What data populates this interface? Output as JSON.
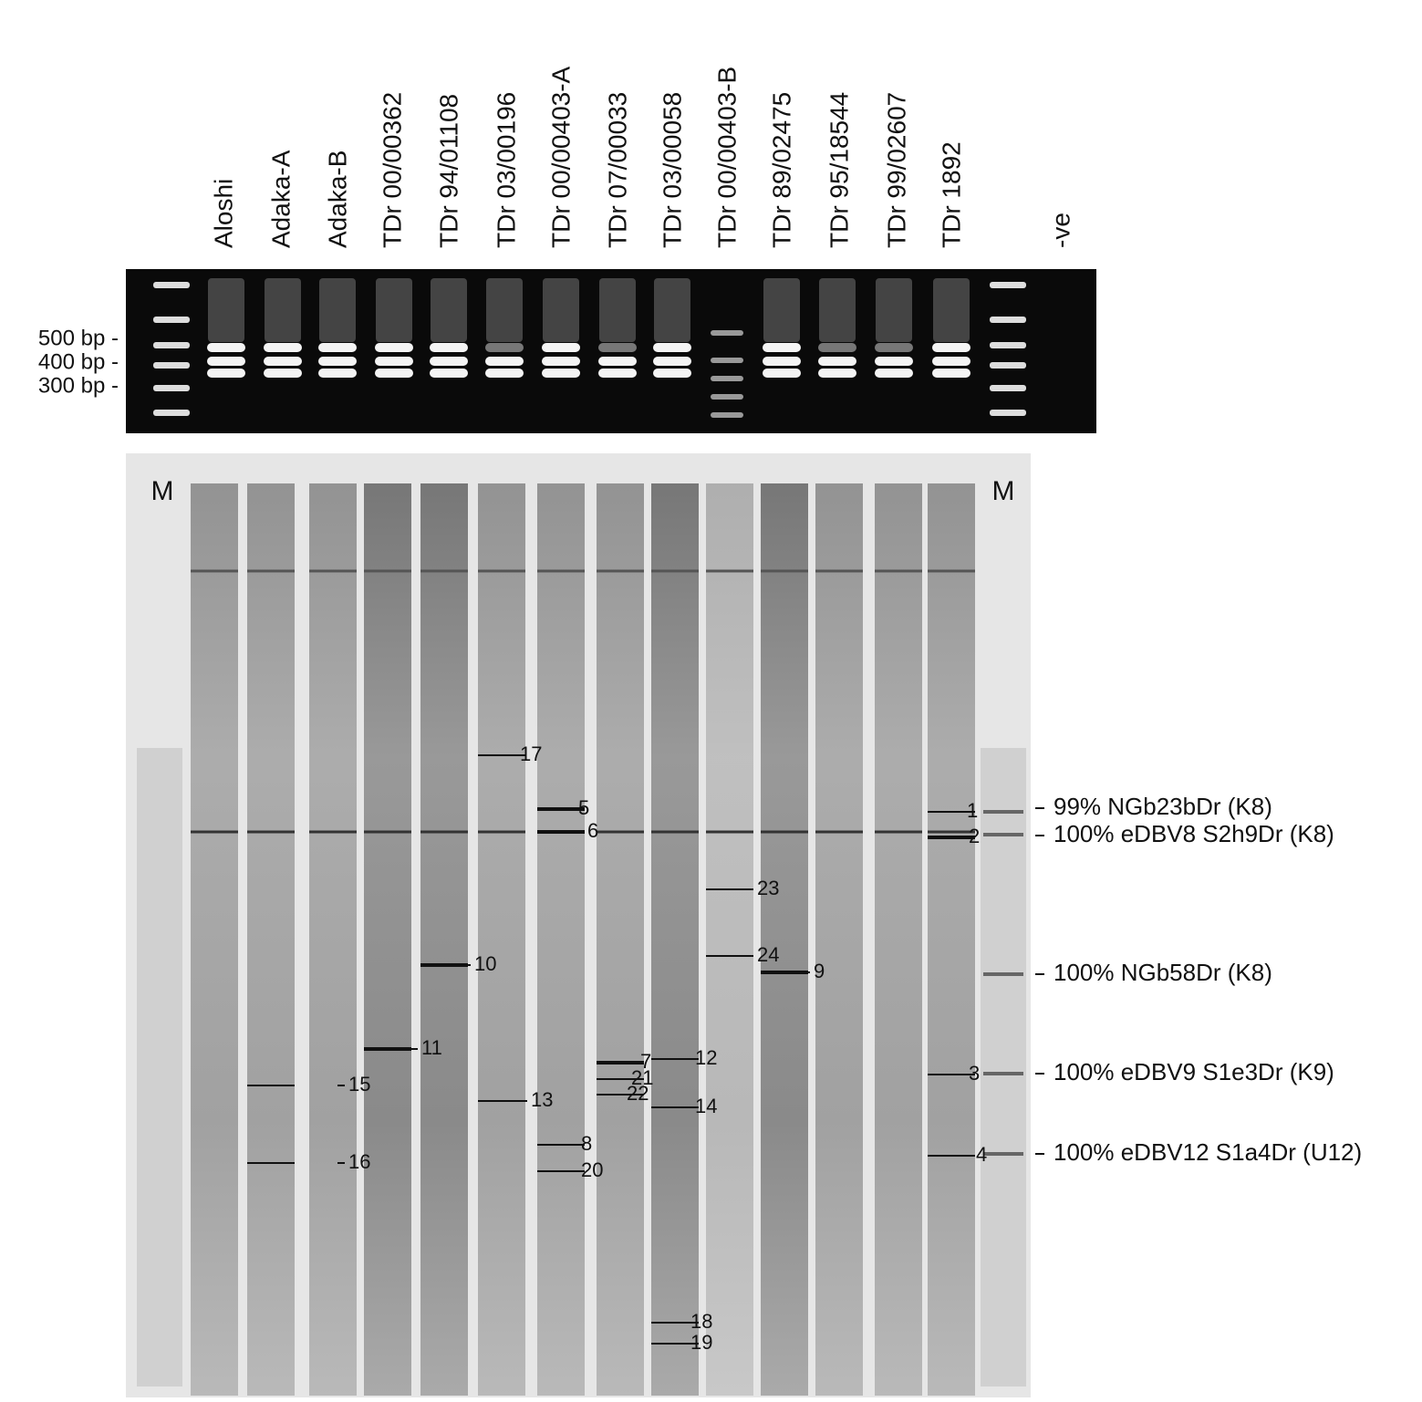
{
  "lanes": [
    "Aloshi",
    "Adaka-A",
    "Adaka-B",
    "TDr 00/00362",
    "TDr 94/01108",
    "TDr 03/00196",
    "TDr 00/00403-A",
    "TDr 07/00033",
    "TDr 03/00058",
    "TDr 00/00403-B",
    "TDr 89/02475",
    "TDr 95/18544",
    "TDr 99/02607",
    "TDr 1892",
    "-ve"
  ],
  "size_markers": [
    "500 bp -",
    "400 bp -",
    "300 bp -"
  ],
  "ladder_labels": [
    "M",
    "M"
  ],
  "band_labels": [
    "1",
    "2",
    "3",
    "4",
    "5",
    "6",
    "7",
    "8",
    "9",
    "10",
    "11",
    "12",
    "13",
    "14",
    "15",
    "16",
    "17",
    "18",
    "19",
    "20",
    "21",
    "22",
    "23",
    "24"
  ],
  "annotations": [
    "99% NGb23bDr (K8)",
    "100% eDBV8 S2h9Dr (K8)",
    "100% NGb58Dr (K8)",
    "100% eDBV9 S1e3Dr (K9)",
    "100% eDBV12 S1a4Dr (U12)"
  ]
}
